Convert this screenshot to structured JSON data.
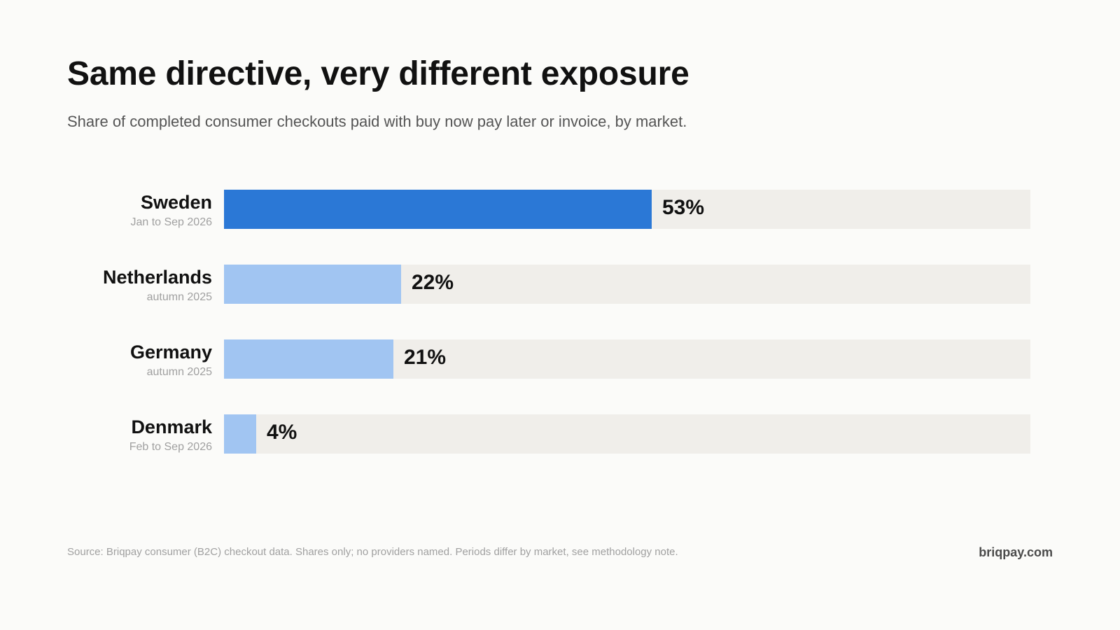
{
  "header": {
    "title": "Same directive, very different exposure",
    "subtitle": "Share of completed consumer checkouts paid with buy now pay later or invoice, by market."
  },
  "chart_data": {
    "type": "bar",
    "orientation": "horizontal",
    "title": "Same directive, very different exposure",
    "subtitle": "Share of completed consumer checkouts paid with buy now pay later or invoice, by market.",
    "categories": [
      "Sweden",
      "Netherlands",
      "Germany",
      "Denmark"
    ],
    "periods": [
      "Jan to Sep 2026",
      "autumn 2025",
      "autumn 2025",
      "Feb to Sep 2026"
    ],
    "values": [
      53,
      22,
      21,
      4
    ],
    "value_labels": [
      "53%",
      "22%",
      "21%",
      "4%"
    ],
    "unit": "%",
    "xlim": [
      0,
      100
    ],
    "highlighted_category": "Sweden",
    "grid": false,
    "legend": "none",
    "colors": {
      "highlight": "#2b78d6",
      "default": "#a1c5f2",
      "track": "#f0eeea"
    }
  },
  "footer": {
    "source": "Source: Briqpay consumer (B2C) checkout data. Shares only; no providers named. Periods differ by market, see methodology note.",
    "brand": "briqpay.com"
  }
}
